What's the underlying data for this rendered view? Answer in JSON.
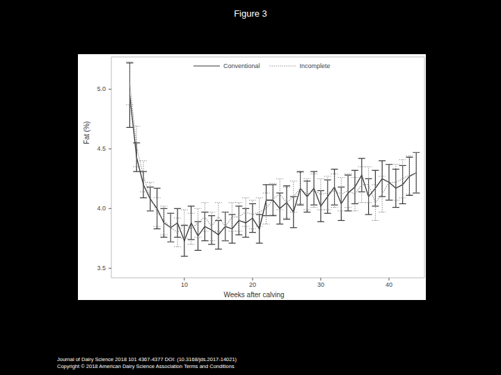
{
  "chart_data": {
    "type": "line",
    "title": "Figure 3",
    "x_label": "Weeks after calving",
    "y_label": "Fat (%)",
    "annotations": [
      "Journal of Dairy Science 2018 101 4367-4377 DOI: (10.3168/jds.2017-14021)",
      "Copyright © 2018 American Dairy Science Association Terms and Conditions"
    ],
    "x": [
      2,
      3,
      4,
      5,
      6,
      7,
      8,
      9,
      10,
      11,
      12,
      13,
      14,
      15,
      16,
      17,
      18,
      19,
      20,
      21,
      22,
      23,
      24,
      25,
      26,
      27,
      28,
      29,
      30,
      31,
      32,
      33,
      34,
      35,
      36,
      37,
      38,
      39,
      40,
      41,
      42,
      43,
      44
    ],
    "series": [
      {
        "name": "Conventional",
        "color": "#333333",
        "line_style": "solid",
        "values": [
          4.95,
          4.43,
          4.2,
          4.08,
          4.0,
          3.88,
          3.84,
          3.88,
          3.73,
          3.88,
          3.77,
          3.85,
          3.82,
          3.78,
          3.85,
          3.83,
          3.9,
          3.88,
          3.92,
          3.83,
          4.07,
          4.07,
          4.0,
          4.05,
          3.97,
          4.17,
          4.1,
          4.17,
          4.02,
          4.1,
          4.18,
          4.04,
          4.13,
          4.18,
          4.28,
          4.1,
          4.17,
          4.25,
          4.22,
          4.17,
          4.2,
          4.27,
          4.3
        ],
        "errors": [
          0.27,
          0.12,
          0.11,
          0.1,
          0.17,
          0.12,
          0.12,
          0.12,
          0.13,
          0.14,
          0.12,
          0.12,
          0.12,
          0.12,
          0.12,
          0.12,
          0.12,
          0.12,
          0.12,
          0.12,
          0.13,
          0.13,
          0.13,
          0.14,
          0.13,
          0.14,
          0.13,
          0.14,
          0.13,
          0.14,
          0.15,
          0.14,
          0.15,
          0.14,
          0.14,
          0.15,
          0.15,
          0.15,
          0.15,
          0.16,
          0.16,
          0.16,
          0.17
        ]
      },
      {
        "name": "Incomplete",
        "color": "#8c8c8c",
        "line_style": "dotted",
        "values": [
          5.05,
          4.52,
          4.27,
          4.1,
          3.97,
          3.9,
          3.84,
          3.8,
          3.87,
          3.83,
          3.88,
          3.93,
          3.85,
          3.93,
          3.85,
          3.93,
          3.93,
          3.97,
          3.95,
          3.97,
          4.0,
          4.08,
          4.12,
          4.05,
          4.1,
          4.17,
          4.12,
          4.15,
          4.12,
          4.13,
          4.15,
          4.12,
          4.15,
          4.12,
          4.2,
          4.2,
          4.05,
          4.12,
          4.22,
          4.22,
          4.25,
          4.28,
          4.3
        ],
        "errors": [
          0.18,
          0.17,
          0.13,
          0.12,
          0.12,
          0.12,
          0.12,
          0.12,
          0.12,
          0.13,
          0.12,
          0.12,
          0.12,
          0.12,
          0.12,
          0.12,
          0.12,
          0.12,
          0.12,
          0.12,
          0.13,
          0.13,
          0.13,
          0.13,
          0.13,
          0.13,
          0.13,
          0.14,
          0.13,
          0.14,
          0.14,
          0.14,
          0.14,
          0.14,
          0.15,
          0.15,
          0.15,
          0.15,
          0.15,
          0.15,
          0.16,
          0.16,
          0.17
        ]
      }
    ],
    "xlim": [
      -0.7,
      45.2
    ],
    "xticks": [
      10,
      20,
      30,
      40
    ],
    "ylim": [
      3.42,
      5.27
    ],
    "yticks": [
      3.5,
      {
        "value": 4,
        "label": "4.0"
      },
      4.5,
      {
        "value": 5,
        "label": "5.0"
      }
    ],
    "legend": "top",
    "grid": false
  }
}
